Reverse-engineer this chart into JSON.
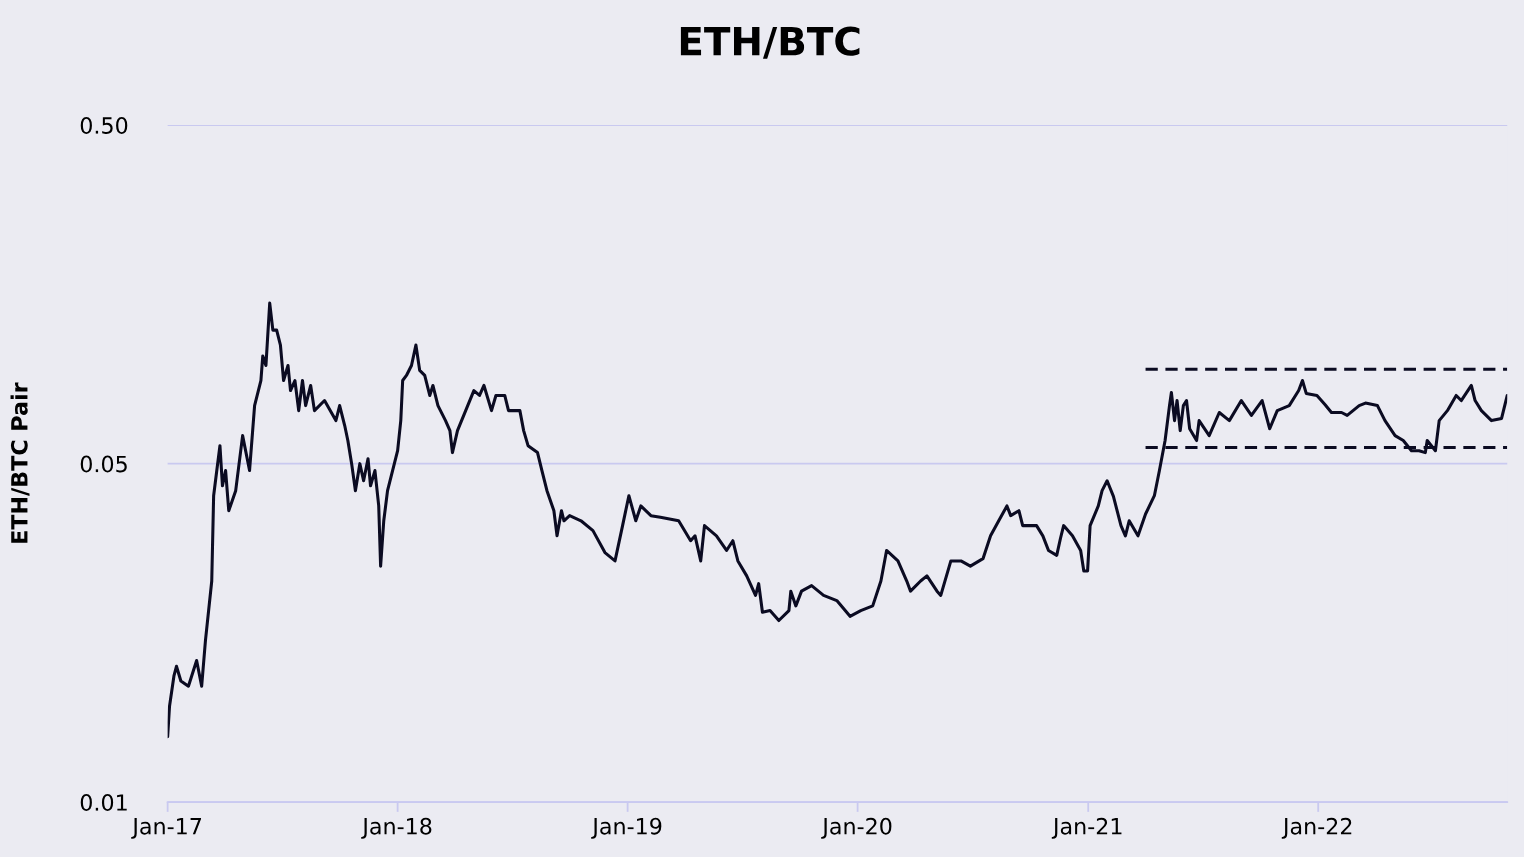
{
  "chart_data": {
    "type": "line",
    "title": "ETH/BTC",
    "ylabel": "ETH/BTC Pair",
    "log": "y",
    "grid": "y",
    "xlim": [
      "2017-01-01",
      "2022-10-28"
    ],
    "xticks": [
      {
        "value": "2017-01-01",
        "label": "Jan-17"
      },
      {
        "value": "2018-01-01",
        "label": "Jan-18"
      },
      {
        "value": "2019-01-01",
        "label": "Jan-19"
      },
      {
        "value": "2020-01-01",
        "label": "Jan-20"
      },
      {
        "value": "2021-01-01",
        "label": "Jan-21"
      },
      {
        "value": "2022-01-01",
        "label": "Jan-22"
      }
    ],
    "ylim": [
      0.005,
      0.5
    ],
    "yticks": [
      {
        "value": 0.005,
        "label": "0.01"
      },
      {
        "value": 0.05,
        "label": "0.05"
      },
      {
        "value": 0.5,
        "label": "0.50"
      }
    ],
    "series": [
      {
        "color": "#0b0b22",
        "line_style": "solid",
        "x": [
          "2017-01-01",
          "2017-01-04",
          "2017-01-11",
          "2017-01-15",
          "2017-01-22",
          "2017-02-03",
          "2017-02-16",
          "2017-02-24",
          "2017-03-02",
          "2017-03-12",
          "2017-03-15",
          "2017-03-20",
          "2017-03-25",
          "2017-03-29",
          "2017-04-03",
          "2017-04-08",
          "2017-04-19",
          "2017-04-30",
          "2017-05-11",
          "2017-05-19",
          "2017-05-29",
          "2017-06-01",
          "2017-06-06",
          "2017-06-12",
          "2017-06-17",
          "2017-06-23",
          "2017-06-29",
          "2017-07-04",
          "2017-07-11",
          "2017-07-15",
          "2017-07-22",
          "2017-07-28",
          "2017-08-03",
          "2017-08-08",
          "2017-08-16",
          "2017-08-22",
          "2017-09-07",
          "2017-09-25",
          "2017-10-01",
          "2017-10-09",
          "2017-10-14",
          "2017-10-20",
          "2017-10-26",
          "2017-11-02",
          "2017-11-08",
          "2017-11-15",
          "2017-11-19",
          "2017-11-26",
          "2017-12-02",
          "2017-12-05",
          "2017-12-10",
          "2017-12-16",
          "2017-12-24",
          "2018-01-01",
          "2018-01-06",
          "2018-01-09",
          "2018-01-15",
          "2018-01-23",
          "2018-01-30",
          "2018-02-05",
          "2018-02-13",
          "2018-02-21",
          "2018-02-26",
          "2018-03-06",
          "2018-03-18",
          "2018-03-25",
          "2018-03-29",
          "2018-04-06",
          "2018-04-19",
          "2018-05-02",
          "2018-05-11",
          "2018-05-18",
          "2018-05-30",
          "2018-06-06",
          "2018-06-20",
          "2018-06-26",
          "2018-07-14",
          "2018-07-20",
          "2018-07-27",
          "2018-08-11",
          "2018-08-18",
          "2018-08-26",
          "2018-09-06",
          "2018-09-11",
          "2018-09-18",
          "2018-09-22",
          "2018-10-01",
          "2018-10-19",
          "2018-11-07",
          "2018-11-26",
          "2018-12-12",
          "2018-12-24",
          "2019-01-03",
          "2019-01-14",
          "2019-01-22",
          "2019-02-07",
          "2019-02-22",
          "2019-03-23",
          "2019-04-11",
          "2019-04-18",
          "2019-04-27",
          "2019-05-03",
          "2019-05-22",
          "2019-06-07",
          "2019-06-17",
          "2019-06-25",
          "2019-07-09",
          "2019-07-23",
          "2019-07-28",
          "2019-08-03",
          "2019-08-15",
          "2019-08-29",
          "2019-09-14",
          "2019-09-17",
          "2019-09-25",
          "2019-10-04",
          "2019-10-20",
          "2019-11-08",
          "2019-11-29",
          "2019-12-20",
          "2020-01-06",
          "2020-01-25",
          "2020-02-07",
          "2020-02-16",
          "2020-03-05",
          "2020-03-19",
          "2020-03-25",
          "2020-04-10",
          "2020-04-20",
          "2020-05-06",
          "2020-05-12",
          "2020-05-28",
          "2020-06-13",
          "2020-06-28",
          "2020-07-18",
          "2020-07-30",
          "2020-08-12",
          "2020-08-25",
          "2020-08-31",
          "2020-09-13",
          "2020-09-19",
          "2020-10-11",
          "2020-10-21",
          "2020-10-30",
          "2020-11-12",
          "2020-11-18",
          "2020-11-23",
          "2020-12-07",
          "2020-12-20",
          "2020-12-25",
          "2020-12-31",
          "2021-01-04",
          "2021-01-17",
          "2021-01-23",
          "2021-01-31",
          "2021-02-10",
          "2021-02-22",
          "2021-03-01",
          "2021-03-07",
          "2021-03-21",
          "2021-04-02",
          "2021-04-16",
          "2021-04-24",
          "2021-05-03",
          "2021-05-10",
          "2021-05-13",
          "2021-05-18",
          "2021-05-22",
          "2021-05-27",
          "2021-06-01",
          "2021-06-06",
          "2021-06-11",
          "2021-06-22",
          "2021-06-26",
          "2021-07-12",
          "2021-07-28",
          "2021-08-13",
          "2021-09-01",
          "2021-09-17",
          "2021-10-04",
          "2021-10-16",
          "2021-10-28",
          "2021-11-16",
          "2021-12-01",
          "2021-12-07",
          "2021-12-13",
          "2021-12-30",
          "2022-01-12",
          "2022-01-22",
          "2022-02-07",
          "2022-02-16",
          "2022-03-07",
          "2022-03-17",
          "2022-04-05",
          "2022-04-17",
          "2022-05-03",
          "2022-05-16",
          "2022-05-29",
          "2022-06-10",
          "2022-06-20",
          "2022-06-23",
          "2022-07-06",
          "2022-07-12",
          "2022-07-25",
          "2022-08-08",
          "2022-08-16",
          "2022-09-01",
          "2022-09-07",
          "2022-09-17",
          "2022-10-03",
          "2022-10-19",
          "2022-10-28"
        ],
        "values": [
          0.0078,
          0.0096,
          0.0118,
          0.0126,
          0.0114,
          0.011,
          0.0131,
          0.011,
          0.015,
          0.0225,
          0.0402,
          0.0477,
          0.0565,
          0.043,
          0.0477,
          0.0363,
          0.0416,
          0.0605,
          0.0477,
          0.0742,
          0.088,
          0.104,
          0.0975,
          0.149,
          0.124,
          0.124,
          0.112,
          0.088,
          0.0975,
          0.0822,
          0.088,
          0.0717,
          0.088,
          0.0742,
          0.0851,
          0.0717,
          0.0768,
          0.067,
          0.0742,
          0.0648,
          0.0585,
          0.05,
          0.0416,
          0.05,
          0.0445,
          0.0517,
          0.043,
          0.0477,
          0.0375,
          0.0249,
          0.0339,
          0.0416,
          0.0477,
          0.0546,
          0.067,
          0.088,
          0.0911,
          0.0975,
          0.112,
          0.0943,
          0.0911,
          0.0795,
          0.0851,
          0.0742,
          0.067,
          0.0626,
          0.0539,
          0.0626,
          0.0717,
          0.0822,
          0.0795,
          0.0851,
          0.0717,
          0.0795,
          0.0795,
          0.0717,
          0.0717,
          0.0626,
          0.0565,
          0.0539,
          0.0477,
          0.0416,
          0.0363,
          0.0306,
          0.0363,
          0.0339,
          0.0351,
          0.0339,
          0.0317,
          0.0273,
          0.0258,
          0.0328,
          0.0402,
          0.0339,
          0.0375,
          0.0351,
          0.0347,
          0.0339,
          0.0296,
          0.0306,
          0.0258,
          0.0328,
          0.0306,
          0.0277,
          0.0296,
          0.0258,
          0.0233,
          0.0204,
          0.0221,
          0.0182,
          0.0184,
          0.0172,
          0.0184,
          0.021,
          0.019,
          0.021,
          0.0218,
          0.0204,
          0.0197,
          0.0177,
          0.0184,
          0.019,
          0.0225,
          0.0277,
          0.0258,
          0.0225,
          0.021,
          0.0225,
          0.0233,
          0.021,
          0.0204,
          0.0258,
          0.0258,
          0.0249,
          0.0262,
          0.0306,
          0.0339,
          0.0375,
          0.0351,
          0.0363,
          0.0328,
          0.0328,
          0.0306,
          0.0277,
          0.0268,
          0.0301,
          0.0328,
          0.0306,
          0.0277,
          0.0241,
          0.0241,
          0.0328,
          0.0375,
          0.0416,
          0.0445,
          0.04,
          0.0328,
          0.0306,
          0.0339,
          0.0306,
          0.0355,
          0.0402,
          0.0477,
          0.0585,
          0.0742,
          0.0811,
          0.067,
          0.0768,
          0.0626,
          0.0742,
          0.0768,
          0.0634,
          0.0585,
          0.067,
          0.0605,
          0.0708,
          0.067,
          0.0768,
          0.0694,
          0.0768,
          0.0634,
          0.0717,
          0.0742,
          0.0822,
          0.088,
          0.0806,
          0.0795,
          0.0746,
          0.0708,
          0.0708,
          0.0694,
          0.0742,
          0.0755,
          0.0742,
          0.067,
          0.0605,
          0.0585,
          0.0546,
          0.0546,
          0.0539,
          0.0585,
          0.0546,
          0.067,
          0.0717,
          0.0795,
          0.0768,
          0.0851,
          0.0768,
          0.0717,
          0.067,
          0.068,
          0.0795
        ]
      },
      {
        "color": "#0b0b22",
        "line_style": "dashed",
        "x": [
          "2021-04-02",
          "2022-10-28"
        ],
        "values": [
          0.095,
          0.095
        ]
      },
      {
        "color": "#0b0b22",
        "line_style": "dashed",
        "x": [
          "2021-04-02",
          "2022-10-28"
        ],
        "values": [
          0.0558,
          0.0558
        ]
      }
    ]
  }
}
